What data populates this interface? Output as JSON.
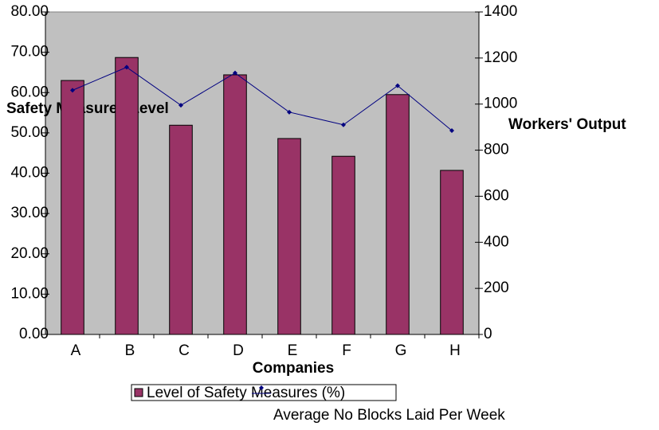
{
  "chart_data": {
    "type": "bar",
    "categories": [
      "A",
      "B",
      "C",
      "D",
      "E",
      "F",
      "G",
      "H"
    ],
    "series": [
      {
        "name": "Level of Safety Measures (%)",
        "type": "bar",
        "color": "#993366",
        "values": [
          63,
          68.7,
          51.9,
          64.4,
          48.6,
          44.2,
          59.5,
          40.7
        ]
      },
      {
        "name": "Average No Blocks Laid Per Week",
        "type": "line",
        "axis": "y2",
        "color": "#000080",
        "values": [
          1060,
          1160,
          995,
          1135,
          965,
          910,
          1080,
          885
        ]
      }
    ],
    "y_label": "Safety Measures Level",
    "y2_label": "Workers' Output",
    "x_label": "Companies",
    "ylim": [
      0,
      80
    ],
    "yticks": [
      {
        "value": 0,
        "label": "0.00"
      },
      {
        "value": 10,
        "label": "10.00"
      },
      {
        "value": 20,
        "label": "20.00"
      },
      {
        "value": 30,
        "label": "30.00"
      },
      {
        "value": 40,
        "label": "40.00"
      },
      {
        "value": 50,
        "label": "50.00"
      },
      {
        "value": 60,
        "label": "60.00"
      },
      {
        "value": 70,
        "label": "70.00"
      },
      {
        "value": 80,
        "label": "80.00"
      }
    ],
    "y2lim": [
      0,
      1400
    ],
    "y2ticks": [
      0,
      200,
      400,
      600,
      800,
      1000,
      1200,
      1400
    ],
    "plot_background": "#c0c0c0"
  }
}
